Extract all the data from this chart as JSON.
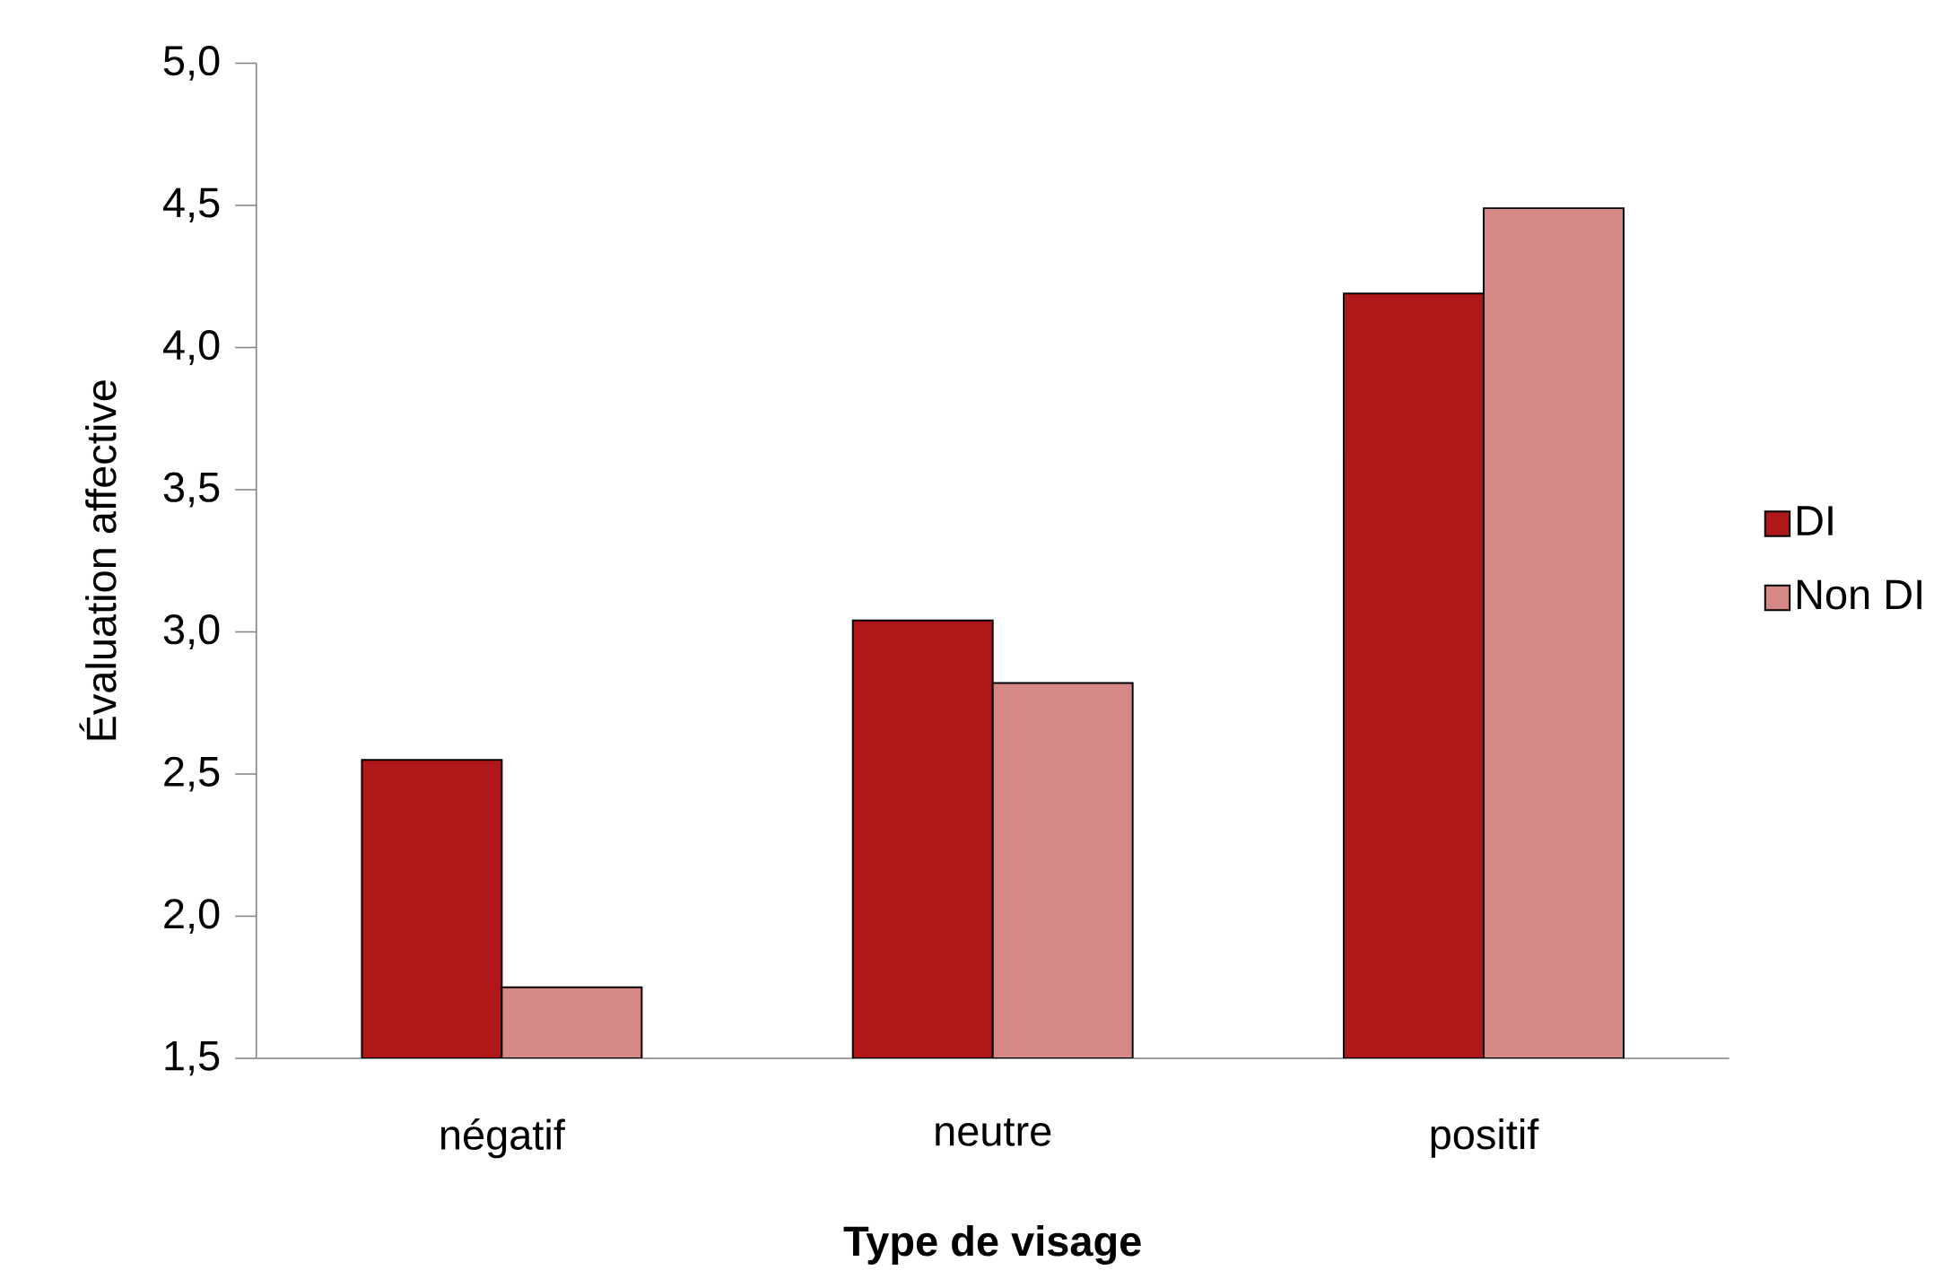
{
  "chart_data": {
    "type": "bar",
    "xlabel": "Type de visage",
    "ylabel": "Évaluation affective",
    "categories": [
      "négatif",
      "neutre",
      "positif"
    ],
    "series": [
      {
        "name": "DI",
        "color": "#b01718",
        "values": [
          2.55,
          3.04,
          4.19
        ]
      },
      {
        "name": "Non DI",
        "color": "#d68886",
        "values": [
          1.75,
          2.82,
          4.49
        ]
      }
    ],
    "ylim": [
      1.5,
      5.0
    ],
    "yticks": [
      {
        "value": 1.5,
        "label": "1,5"
      },
      {
        "value": 2.0,
        "label": "2,0"
      },
      {
        "value": 2.5,
        "label": "2,5"
      },
      {
        "value": 3.0,
        "label": "3,0"
      },
      {
        "value": 3.5,
        "label": "3,5"
      },
      {
        "value": 4.0,
        "label": "4,0"
      },
      {
        "value": 4.5,
        "label": "4,5"
      },
      {
        "value": 5.0,
        "label": "5,0"
      }
    ],
    "legend": "right"
  }
}
